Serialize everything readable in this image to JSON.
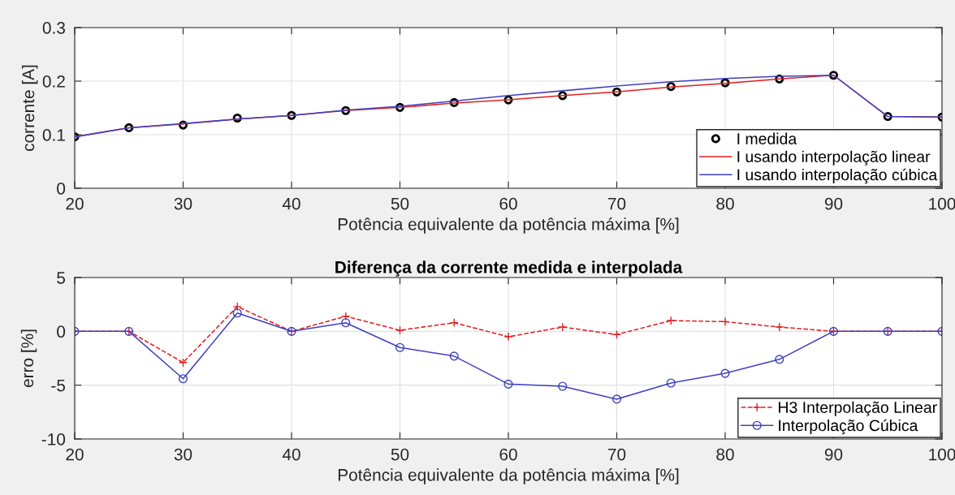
{
  "chart_data": [
    {
      "type": "line",
      "xlabel": "Potência equivalente da potência máxima [%]",
      "ylabel": "corrente [A]",
      "x": [
        20,
        25,
        30,
        35,
        40,
        45,
        50,
        55,
        60,
        65,
        70,
        75,
        80,
        85,
        90,
        95,
        100
      ],
      "xlim": [
        20,
        100
      ],
      "xticks": [
        20,
        30,
        40,
        50,
        60,
        70,
        80,
        90,
        100
      ],
      "ylim": [
        0,
        0.3
      ],
      "yticks": [
        0,
        0.1,
        0.2,
        0.3
      ],
      "grid": true,
      "legend": "lower right",
      "series": [
        {
          "name": "I medida",
          "type": "scatter",
          "color": "#000000",
          "marker": "circle",
          "values": [
            0.096,
            0.113,
            0.118,
            0.131,
            0.136,
            0.145,
            0.151,
            0.16,
            0.165,
            0.173,
            0.18,
            0.19,
            0.197,
            0.204,
            0.211,
            0.134,
            0.133
          ]
        },
        {
          "name": "I usando interpolação linear",
          "color": "#e02020",
          "line_style": "solid",
          "values": [
            0.096,
            0.113,
            0.12,
            0.129,
            0.136,
            0.145,
            0.151,
            0.159,
            0.165,
            0.173,
            0.18,
            0.189,
            0.196,
            0.204,
            0.211,
            0.134,
            0.133
          ]
        },
        {
          "name": "I usando interpolação cúbica",
          "color": "#4040c0",
          "line_style": "solid",
          "values": [
            0.096,
            0.113,
            0.121,
            0.129,
            0.136,
            0.146,
            0.153,
            0.163,
            0.173,
            0.182,
            0.191,
            0.199,
            0.205,
            0.209,
            0.211,
            0.134,
            0.133
          ]
        }
      ]
    },
    {
      "type": "line",
      "title": "Diferença da corrente medida e interpolada",
      "xlabel": "Potência equivalente da potência máxima [%]",
      "ylabel": "erro [%]",
      "x": [
        20,
        25,
        30,
        35,
        40,
        45,
        50,
        55,
        60,
        65,
        70,
        75,
        80,
        85,
        90,
        95,
        100
      ],
      "xlim": [
        20,
        100
      ],
      "xticks": [
        20,
        30,
        40,
        50,
        60,
        70,
        80,
        90,
        100
      ],
      "ylim": [
        -10,
        5
      ],
      "yticks": [
        -10,
        -5,
        0,
        5
      ],
      "grid": true,
      "legend": "lower right",
      "series": [
        {
          "name": "H3 Interpolação Linear",
          "color": "#e02020",
          "marker": "cross",
          "line_style": "dashed",
          "values": [
            0,
            0,
            -2.9,
            2.3,
            0,
            1.4,
            0.1,
            0.8,
            -0.5,
            0.4,
            -0.3,
            1.0,
            0.9,
            0.4,
            0,
            0,
            0
          ]
        },
        {
          "name": "Interpolação Cúbica",
          "color": "#4040c0",
          "marker": "circle",
          "line_style": "solid",
          "values": [
            0,
            0,
            -4.4,
            1.7,
            0,
            0.8,
            -1.5,
            -2.3,
            -4.9,
            -5.1,
            -6.3,
            -4.8,
            -3.9,
            -2.6,
            0,
            0,
            0
          ]
        }
      ]
    }
  ]
}
